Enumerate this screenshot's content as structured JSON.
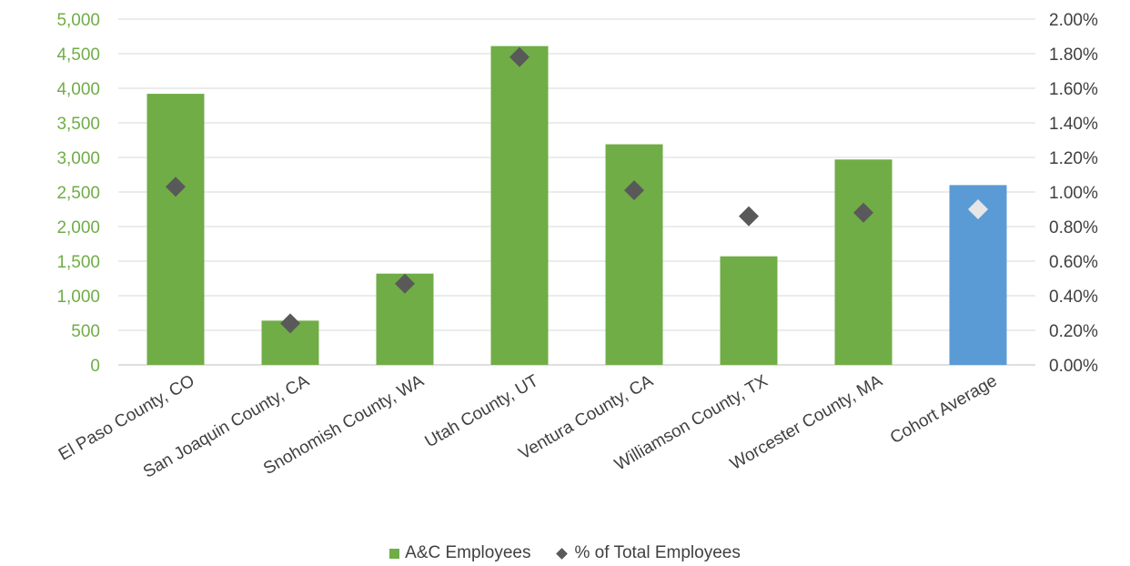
{
  "chart_data": {
    "type": "bar",
    "categories": [
      "El Paso County, CO",
      "San Joaquin County, CA",
      "Snohomish County, WA",
      "Utah County, UT",
      "Ventura County, CA",
      "Williamson County, TX",
      "Worcester County, MA",
      "Cohort Average"
    ],
    "series": [
      {
        "name": "A&C Employees",
        "axis": "left",
        "values": [
          3920,
          640,
          1320,
          4610,
          3190,
          1570,
          2970,
          2600
        ],
        "color": "#70AD47",
        "highlight_color": "#5B9BD5",
        "highlight_index": 7
      },
      {
        "name": "% of Total Employees",
        "axis": "right",
        "kind": "diamond",
        "values": [
          1.03,
          0.24,
          0.47,
          1.78,
          1.01,
          0.86,
          0.88,
          0.9
        ],
        "color": "#595959",
        "highlight_color": "#E7E6E6",
        "highlight_index": 7
      }
    ],
    "y_left": {
      "ticks": [
        "0",
        "500",
        "1,000",
        "1,500",
        "2,000",
        "2,500",
        "3,000",
        "3,500",
        "4,000",
        "4,500",
        "5,000"
      ],
      "range": [
        0,
        5000
      ],
      "color": "#70AD47"
    },
    "y_right": {
      "ticks": [
        "0.00%",
        "0.20%",
        "0.40%",
        "0.60%",
        "0.80%",
        "1.00%",
        "1.20%",
        "1.40%",
        "1.60%",
        "1.80%",
        "2.00%"
      ],
      "range": [
        0,
        2.0
      ]
    },
    "grid": true,
    "legend_position": "bottom"
  }
}
